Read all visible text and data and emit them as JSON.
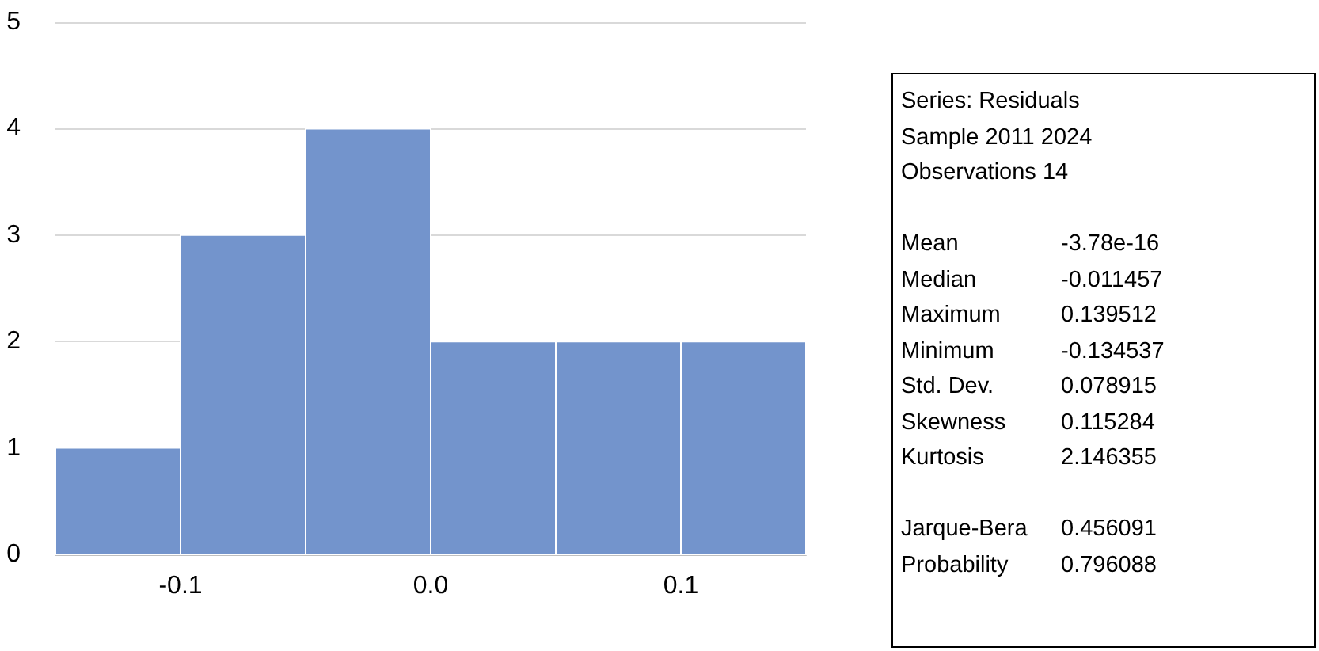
{
  "chart_data": {
    "type": "histogram",
    "bins": [
      -0.15,
      -0.1,
      -0.05,
      0.0,
      0.05,
      0.1,
      0.15
    ],
    "values": [
      1,
      3,
      4,
      2,
      2,
      2
    ],
    "color": "#7394cc",
    "xlim": [
      -0.15,
      0.15
    ],
    "xticks": [
      -0.1,
      {
        "value": 0.0,
        "label": "0.0"
      },
      0.1
    ],
    "ylim": [
      0,
      5
    ],
    "yticks": [
      0,
      1,
      2,
      3,
      4,
      5
    ],
    "grid": "y",
    "annotations": [
      "Series: Residuals",
      "Sample 2011 2024",
      "Observations 14",
      "Mean",
      "-3.78e-16",
      "Median",
      "-0.011457",
      "Maximum",
      "0.139512",
      "Minimum",
      "-0.134537",
      "Std. Dev.",
      "0.078915",
      "Skewness",
      "0.115284",
      "Kurtosis",
      "2.146355",
      "Jarque-Bera",
      "0.456091",
      "Probability",
      "0.796088"
    ]
  }
}
